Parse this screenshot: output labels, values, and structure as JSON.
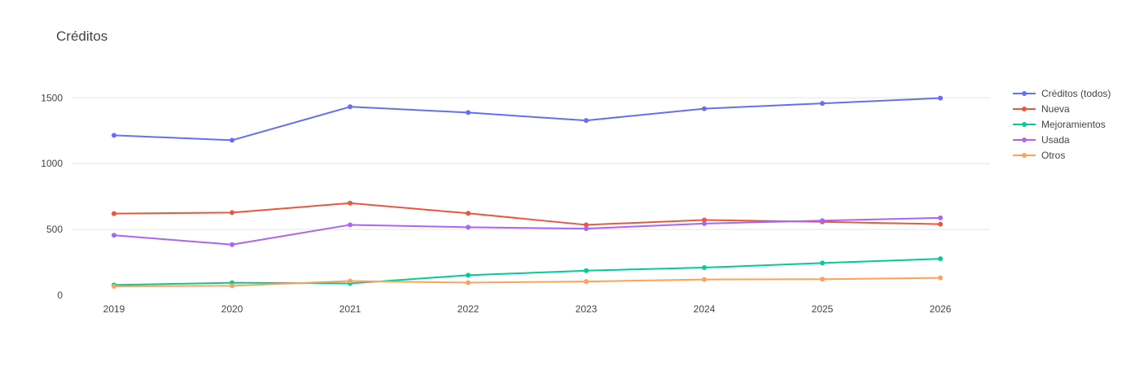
{
  "chart_data": {
    "type": "line",
    "title": "Créditos",
    "xlabel": "",
    "ylabel": "",
    "x": [
      "2019",
      "2020",
      "2021",
      "2022",
      "2023",
      "2024",
      "2025",
      "2026"
    ],
    "ylim": [
      0,
      1780
    ],
    "yticks": [
      0,
      500,
      1000,
      1500
    ],
    "grid": true,
    "legend_position": "top-right",
    "series": [
      {
        "name": "Créditos (todos)",
        "color": "#636efa",
        "values": [
          1215,
          1178,
          1432,
          1388,
          1328,
          1418,
          1458,
          1498
        ]
      },
      {
        "name": "Nueva",
        "color": "#ef553b",
        "values": [
          620,
          628,
          700,
          623,
          535,
          572,
          558,
          540
        ]
      },
      {
        "name": "Mejoramientos",
        "color": "#00cc96",
        "values": [
          78,
          95,
          90,
          152,
          187,
          210,
          245,
          277
        ]
      },
      {
        "name": "Usada",
        "color": "#ab63fa",
        "values": [
          456,
          385,
          535,
          517,
          506,
          545,
          567,
          588
        ]
      },
      {
        "name": "Otros",
        "color": "#ffa15a",
        "values": [
          68,
          72,
          108,
          96,
          104,
          120,
          122,
          132
        ]
      }
    ]
  }
}
